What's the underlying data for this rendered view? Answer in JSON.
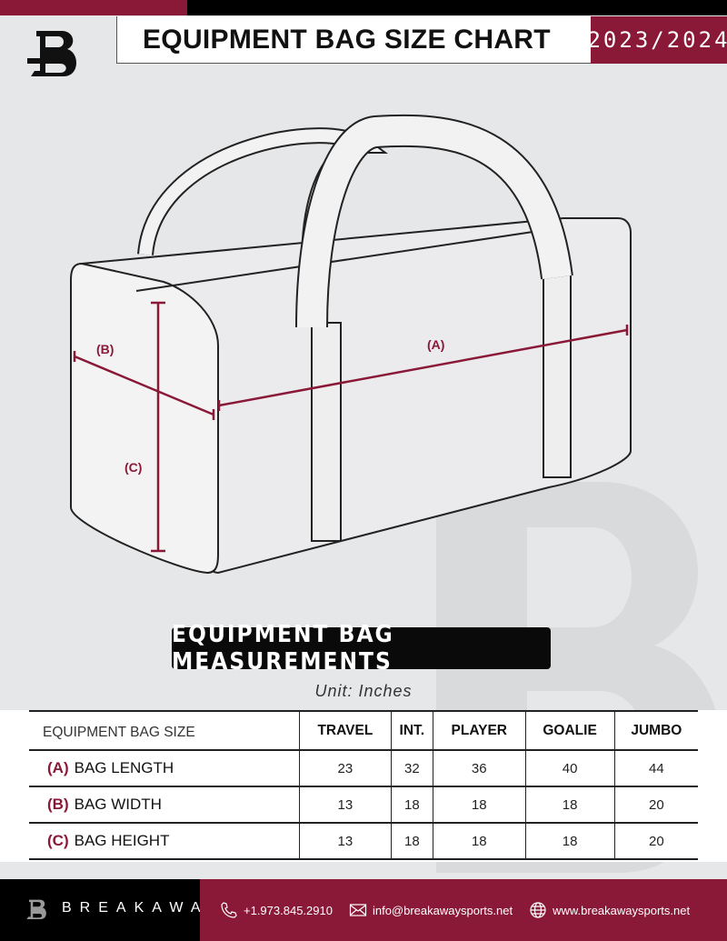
{
  "header": {
    "title": "EQUIPMENT BAG SIZE CHART",
    "season": "2023/2024",
    "logo_letter": "B"
  },
  "diagram": {
    "label_a": "(A)",
    "label_b": "(B)",
    "label_c": "(C)",
    "accent": "#8a1837"
  },
  "measurements": {
    "title": "EQUIPMENT BAG MEASUREMENTS",
    "unit": "Unit: Inches"
  },
  "table": {
    "header": [
      "EQUIPMENT BAG SIZE",
      "TRAVEL",
      "INT.",
      "PLAYER",
      "GOALIE",
      "JUMBO"
    ],
    "rows": [
      {
        "key": "(A)",
        "label": "BAG LENGTH",
        "values": [
          "23",
          "32",
          "36",
          "40",
          "44"
        ]
      },
      {
        "key": "(B)",
        "label": "BAG WIDTH",
        "values": [
          "13",
          "18",
          "18",
          "18",
          "20"
        ]
      },
      {
        "key": "(C)",
        "label": "BAG HEIGHT",
        "values": [
          "13",
          "18",
          "18",
          "18",
          "20"
        ]
      }
    ]
  },
  "footer": {
    "brand": "BREAKAWAY",
    "phone": "+1.973.845.2910",
    "email": "info@breakawaysports.net",
    "website": "www.breakawaysports.net"
  },
  "colors": {
    "brand": "#8a1837",
    "dark": "#000000",
    "background": "#e6e7e9"
  }
}
